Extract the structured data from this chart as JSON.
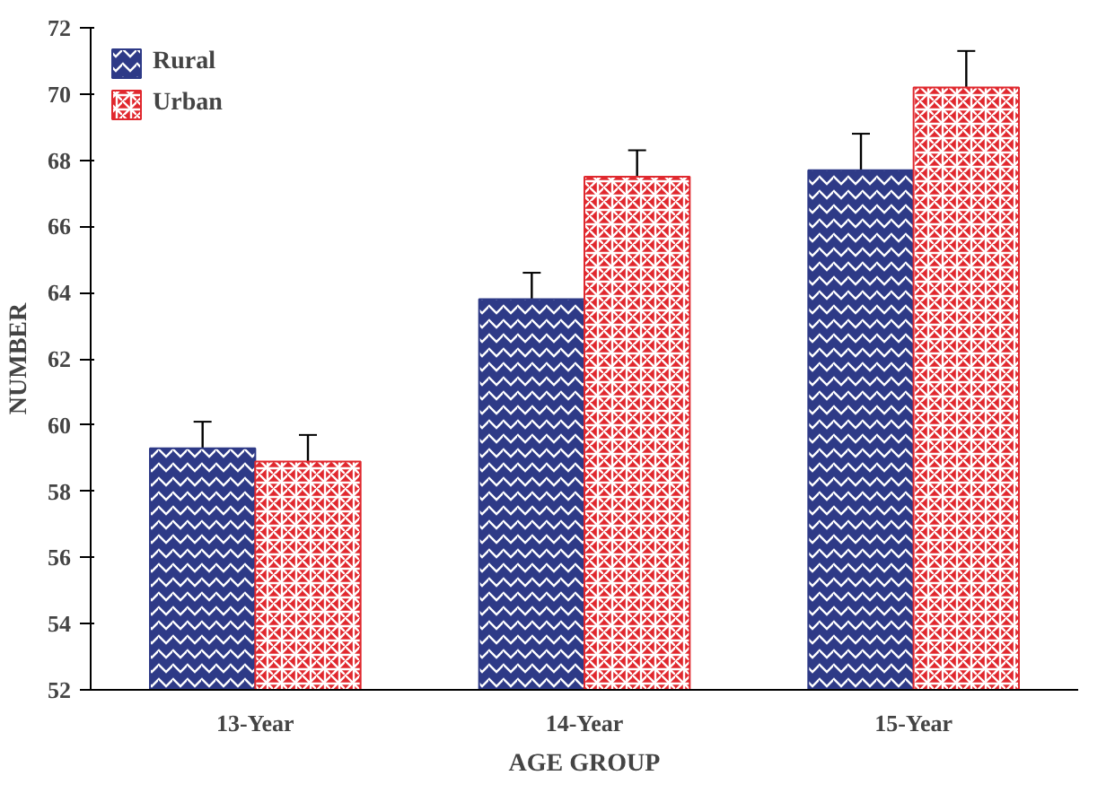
{
  "chart_data": {
    "type": "bar",
    "xlabel": "AGE GROUP",
    "ylabel": "NUMBER",
    "categories": [
      "13-Year",
      "14-Year",
      "15-Year"
    ],
    "series": [
      {
        "name": "Rural",
        "color": "#2e3a87",
        "values": [
          59.3,
          63.8,
          67.7
        ],
        "errors": [
          0.8,
          0.8,
          1.1
        ]
      },
      {
        "name": "Urban",
        "color": "#e0282e",
        "values": [
          58.9,
          67.5,
          70.2
        ],
        "errors": [
          0.8,
          0.8,
          1.1
        ]
      }
    ],
    "ylim": [
      52,
      72
    ],
    "yticks": [
      52,
      54,
      56,
      58,
      60,
      62,
      64,
      66,
      68,
      70,
      72
    ],
    "grid": false,
    "legend": "top left"
  }
}
